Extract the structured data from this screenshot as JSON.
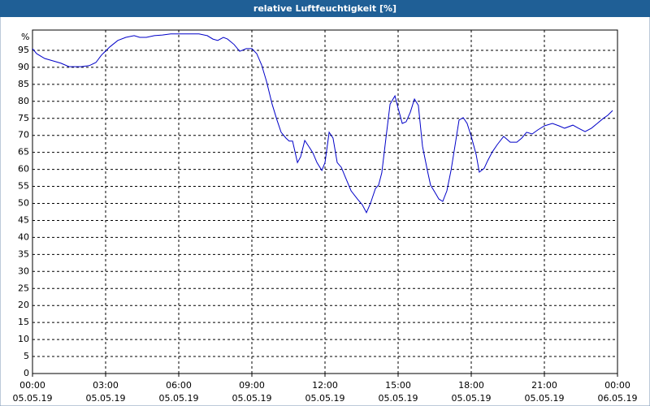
{
  "chart_data": {
    "type": "line",
    "title": "relative Luftfeuchtigkeit [%]",
    "y_unit": "%",
    "x": [
      0,
      0.17,
      0.5,
      0.83,
      1.17,
      1.5,
      2,
      2.33,
      2.6,
      2.83,
      3.17,
      3.5,
      3.83,
      4.17,
      4.4,
      4.67,
      5,
      5.33,
      5.67,
      6.33,
      6.83,
      7.17,
      7.4,
      7.6,
      7.83,
      8,
      8.27,
      8.5,
      8.77,
      9,
      9.2,
      9.4,
      9.6,
      9.83,
      10.03,
      10.2,
      10.4,
      10.53,
      10.67,
      10.87,
      11,
      11.17,
      11.33,
      11.5,
      11.67,
      11.87,
      12,
      12.17,
      12.33,
      12.5,
      12.67,
      12.83,
      13.07,
      13.33,
      13.53,
      13.7,
      13.87,
      14.07,
      14.2,
      14.33,
      14.5,
      14.67,
      14.87,
      15,
      15.17,
      15.33,
      15.5,
      15.67,
      15.83,
      16,
      16.2,
      16.33,
      16.53,
      16.67,
      16.83,
      17,
      17.17,
      17.33,
      17.5,
      17.67,
      17.83,
      18,
      18.2,
      18.33,
      18.53,
      18.67,
      18.87,
      19.07,
      19.33,
      19.6,
      19.87,
      20.07,
      20.27,
      20.5,
      20.73,
      21,
      21.33,
      21.6,
      21.83,
      22.17,
      22.4,
      22.67,
      22.93,
      23.17,
      23.4,
      23.6,
      23.8
    ],
    "series": [
      {
        "name": "relative Luftfeuchtigkeit",
        "color": "#0000c8",
        "values": [
          95.5,
          94,
          92.6,
          91.9,
          91.2,
          90.2,
          90.2,
          90.5,
          91.4,
          93.6,
          96,
          97.9,
          98.8,
          99.3,
          98.8,
          98.8,
          99.3,
          99.5,
          99.8,
          99.8,
          99.8,
          99.3,
          98.3,
          97.9,
          98.8,
          98.3,
          96.7,
          94.7,
          95.5,
          95.5,
          94,
          90.7,
          85.9,
          79.2,
          74.5,
          70.9,
          69.2,
          68.3,
          68.3,
          62,
          63.7,
          68.5,
          66.8,
          64.9,
          62,
          59.7,
          62,
          70.9,
          69.2,
          62,
          60.6,
          57.8,
          53.7,
          51.3,
          49.6,
          47.3,
          50.1,
          54.4,
          55.4,
          59,
          69.2,
          79.2,
          81.6,
          78,
          73.5,
          74,
          76.8,
          80.7,
          78.8,
          66.8,
          59.7,
          55.4,
          53,
          51.3,
          50.6,
          53.7,
          59.7,
          66.8,
          74.5,
          75.2,
          73.5,
          69.7,
          64.4,
          59.2,
          60.3,
          62.5,
          65.2,
          67.3,
          69.7,
          68,
          68,
          69.2,
          70.9,
          70.4,
          71.6,
          72.8,
          73.5,
          72.8,
          72.1,
          73,
          72.1,
          71.1,
          72.1,
          73.5,
          74.9,
          75.9,
          77.3
        ]
      }
    ],
    "xlim": [
      0,
      24
    ],
    "ylim": [
      0,
      100
    ],
    "xticks": [
      {
        "value": 0,
        "label": "00:00",
        "date": "05.05.19"
      },
      {
        "value": 3,
        "label": "03:00",
        "date": "05.05.19"
      },
      {
        "value": 6,
        "label": "06:00",
        "date": "05.05.19"
      },
      {
        "value": 9,
        "label": "09:00",
        "date": "05.05.19"
      },
      {
        "value": 12,
        "label": "12:00",
        "date": "05.05.19"
      },
      {
        "value": 15,
        "label": "15:00",
        "date": "05.05.19"
      },
      {
        "value": 18,
        "label": "18:00",
        "date": "05.05.19"
      },
      {
        "value": 21,
        "label": "21:00",
        "date": "05.05.19"
      },
      {
        "value": 24,
        "label": "00:00",
        "date": "06.05.19"
      }
    ],
    "yticks": [
      0,
      5,
      10,
      15,
      20,
      25,
      30,
      35,
      40,
      45,
      50,
      55,
      60,
      65,
      70,
      75,
      80,
      85,
      90,
      95
    ],
    "grid": true
  }
}
